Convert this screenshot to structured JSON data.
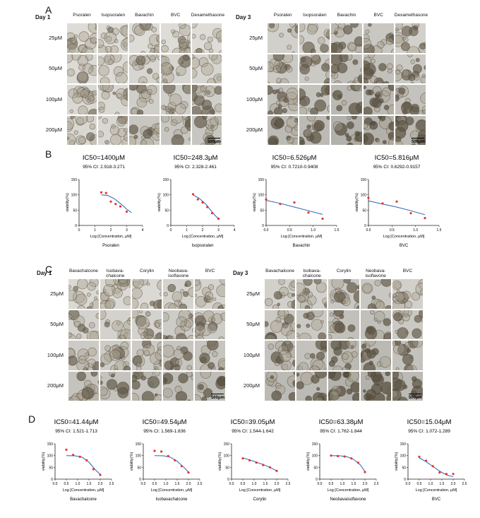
{
  "panels": {
    "A": "A",
    "B": "B",
    "C": "C",
    "D": "D"
  },
  "gridA": {
    "day1": "Day 1",
    "day3": "Day 3",
    "columns": [
      "Psoralen",
      "Isopsoralen",
      "Bavachin",
      "BVC",
      "Dexamethasone"
    ],
    "rows": [
      "25μM",
      "50μM",
      "100μM",
      "200μM"
    ],
    "scale": "500μm"
  },
  "gridC": {
    "day1": "Day 1",
    "day3": "Day 3",
    "columns": [
      "Bavachalcone",
      "Isobava-\nchalcone",
      "Corylin",
      "Neobava-\nisoflavone",
      "BVC"
    ],
    "rows": [
      "25μM",
      "50μM",
      "100μM",
      "200μM"
    ],
    "scale": "500μm"
  },
  "chart_data": [
    {
      "type": "scatter",
      "title": "IC50=1400μM",
      "subtitle": "95% CI: 2.918-3.271",
      "xlabel": "Log [Concentration, μM]",
      "ylabel": "viability(%)",
      "caption": "Psoralen",
      "xlim": [
        0,
        4
      ],
      "ylim": [
        0,
        150
      ],
      "xticks": [
        0,
        1,
        2,
        3,
        4
      ],
      "yticks": [
        0,
        50,
        100,
        150
      ],
      "points": [
        [
          1.4,
          108
        ],
        [
          1.7,
          106
        ],
        [
          2.0,
          78
        ],
        [
          2.3,
          70
        ],
        [
          2.6,
          62
        ],
        [
          3.0,
          45
        ]
      ],
      "fit": [
        [
          1.4,
          100
        ],
        [
          1.8,
          98
        ],
        [
          2.2,
          88
        ],
        [
          2.6,
          72
        ],
        [
          3.0,
          53
        ],
        [
          3.3,
          42
        ]
      ]
    },
    {
      "type": "scatter",
      "title": "IC50=248.3μM",
      "subtitle": "95% CI: 2.328-2.461",
      "xlabel": "Log [Concentration, μM]",
      "ylabel": "viability(%)",
      "caption": "Isopsoralen",
      "xlim": [
        0,
        4
      ],
      "ylim": [
        0,
        150
      ],
      "xticks": [
        0,
        1,
        2,
        3,
        4
      ],
      "yticks": [
        0,
        50,
        100,
        150
      ],
      "points": [
        [
          1.4,
          102
        ],
        [
          1.7,
          85
        ],
        [
          2.0,
          75
        ],
        [
          2.3,
          60
        ],
        [
          2.6,
          40
        ],
        [
          3.0,
          22
        ]
      ],
      "fit": [
        [
          1.4,
          100
        ],
        [
          1.8,
          88
        ],
        [
          2.2,
          70
        ],
        [
          2.5,
          50
        ],
        [
          2.8,
          32
        ],
        [
          3.0,
          22
        ]
      ]
    },
    {
      "type": "scatter",
      "title": "IC50=6.526μM",
      "subtitle": "95% CI: 0.7210-0.9408",
      "xlabel": "Log [Concentration, μM]",
      "ylabel": "viability(%)",
      "caption": "Bavachin",
      "xlim": [
        0,
        1.5
      ],
      "ylim": [
        0,
        150
      ],
      "xticks": [
        0.0,
        0.5,
        1.0,
        1.5
      ],
      "yticks": [
        0,
        50,
        100,
        150
      ],
      "points": [
        [
          0.0,
          85
        ],
        [
          0.3,
          70
        ],
        [
          0.6,
          75
        ],
        [
          0.9,
          42
        ],
        [
          1.2,
          22
        ]
      ],
      "fit": [
        [
          0.0,
          82
        ],
        [
          0.3,
          72
        ],
        [
          0.6,
          60
        ],
        [
          0.9,
          48
        ],
        [
          1.2,
          36
        ]
      ]
    },
    {
      "type": "scatter",
      "title": "IC50=5.816μM",
      "subtitle": "95% CI: 0.6292-0.9157",
      "xlabel": "Log [Concentration, μM]",
      "ylabel": "viability(%)",
      "caption": "BVC",
      "xlim": [
        0,
        1.5
      ],
      "ylim": [
        0,
        150
      ],
      "xticks": [
        0.0,
        0.5,
        1.0,
        1.5
      ],
      "yticks": [
        0,
        50,
        100,
        150
      ],
      "points": [
        [
          0.0,
          90
        ],
        [
          0.3,
          72
        ],
        [
          0.6,
          78
        ],
        [
          0.9,
          40
        ],
        [
          1.2,
          24
        ]
      ],
      "fit": [
        [
          0.0,
          80
        ],
        [
          0.3,
          70
        ],
        [
          0.6,
          60
        ],
        [
          0.9,
          48
        ],
        [
          1.2,
          35
        ]
      ]
    },
    {
      "type": "scatter",
      "title": "IC50=41.44μM",
      "subtitle": "95% CI: 1.521-1.713",
      "xlabel": "Log [Concentration, μM]",
      "ylabel": "viability(%)",
      "caption": "Bavachalcone",
      "xlim": [
        0,
        2.5
      ],
      "ylim": [
        0,
        150
      ],
      "xticks": [
        0.0,
        0.5,
        1.0,
        1.5,
        2.0,
        2.5
      ],
      "yticks": [
        0,
        50,
        100,
        150
      ],
      "points": [
        [
          0.5,
          125
        ],
        [
          0.8,
          103
        ],
        [
          1.1,
          95
        ],
        [
          1.4,
          80
        ],
        [
          1.7,
          42
        ],
        [
          2.0,
          18
        ]
      ],
      "fit": [
        [
          0.5,
          100
        ],
        [
          0.9,
          99
        ],
        [
          1.2,
          93
        ],
        [
          1.5,
          72
        ],
        [
          1.8,
          38
        ],
        [
          2.0,
          20
        ]
      ]
    },
    {
      "type": "scatter",
      "title": "IC50=49.54μM",
      "subtitle": "95% CI: 1.569-1.836",
      "xlabel": "Log [Concentration, μM]",
      "ylabel": "viability(%)",
      "caption": "Isobavachalcone",
      "xlim": [
        0,
        2.5
      ],
      "ylim": [
        0,
        150
      ],
      "xticks": [
        0.0,
        0.5,
        1.0,
        1.5,
        2.0,
        2.5
      ],
      "yticks": [
        0,
        50,
        100,
        150
      ],
      "points": [
        [
          0.5,
          120
        ],
        [
          0.8,
          117
        ],
        [
          1.1,
          98
        ],
        [
          1.4,
          80
        ],
        [
          1.7,
          55
        ],
        [
          2.0,
          28
        ]
      ],
      "fit": [
        [
          0.5,
          100
        ],
        [
          0.9,
          99
        ],
        [
          1.2,
          93
        ],
        [
          1.5,
          76
        ],
        [
          1.8,
          50
        ],
        [
          2.0,
          30
        ]
      ]
    },
    {
      "type": "scatter",
      "title": "IC50=39.05μM",
      "subtitle": "95% CI: 1.544-1.642",
      "xlabel": "Log [Concentration, μM]",
      "ylabel": "viability(%)",
      "caption": "Corylin",
      "xlim": [
        0,
        2.5
      ],
      "ylim": [
        0,
        150
      ],
      "xticks": [
        0.0,
        0.5,
        1.0,
        1.5,
        2.0,
        2.5
      ],
      "yticks": [
        0,
        50,
        100,
        150
      ],
      "points": [
        [
          0.5,
          88
        ],
        [
          0.8,
          80
        ],
        [
          1.1,
          70
        ],
        [
          1.4,
          60
        ],
        [
          1.7,
          50
        ],
        [
          2.0,
          35
        ]
      ],
      "fit": [
        [
          0.5,
          90
        ],
        [
          0.8,
          82
        ],
        [
          1.1,
          72
        ],
        [
          1.4,
          62
        ],
        [
          1.7,
          50
        ],
        [
          2.0,
          35
        ]
      ]
    },
    {
      "type": "scatter",
      "title": "IC50=63.38μM",
      "subtitle": "95% CI: 1.762-1.844",
      "xlabel": "Log [Concentration, μM]",
      "ylabel": "viability(%)",
      "caption": "Neobavaisoflavone",
      "xlim": [
        0,
        2.5
      ],
      "ylim": [
        0,
        150
      ],
      "xticks": [
        0.0,
        0.5,
        1.0,
        1.5,
        2.0,
        2.5
      ],
      "yticks": [
        0,
        50,
        100,
        150
      ],
      "points": [
        [
          0.5,
          100
        ],
        [
          0.8,
          98
        ],
        [
          1.1,
          96
        ],
        [
          1.4,
          88
        ],
        [
          1.7,
          70
        ],
        [
          2.0,
          30
        ]
      ],
      "fit": [
        [
          0.5,
          100
        ],
        [
          0.9,
          99
        ],
        [
          1.2,
          95
        ],
        [
          1.5,
          84
        ],
        [
          1.8,
          60
        ],
        [
          2.0,
          32
        ]
      ]
    },
    {
      "type": "scatter",
      "title": "IC50=15.04μM",
      "subtitle": "95% CI: 1.072-1.289",
      "xlabel": "Log [Concentration, μM]",
      "ylabel": "viability(%)",
      "caption": "BVC",
      "xlim": [
        0,
        2.5
      ],
      "ylim": [
        0,
        150
      ],
      "xticks": [
        0.0,
        0.5,
        1.0,
        1.5,
        2.0,
        2.5
      ],
      "yticks": [
        0,
        50,
        100,
        150
      ],
      "points": [
        [
          0.5,
          95
        ],
        [
          0.8,
          78
        ],
        [
          1.1,
          55
        ],
        [
          1.4,
          28
        ],
        [
          1.7,
          22
        ],
        [
          2.0,
          22
        ]
      ],
      "fit": [
        [
          0.5,
          90
        ],
        [
          0.8,
          74
        ],
        [
          1.1,
          54
        ],
        [
          1.4,
          34
        ],
        [
          1.7,
          18
        ],
        [
          2.0,
          10
        ]
      ]
    }
  ],
  "colors": {
    "point": "#e8322e",
    "fit": "#2a62b0",
    "axis": "#222222"
  }
}
